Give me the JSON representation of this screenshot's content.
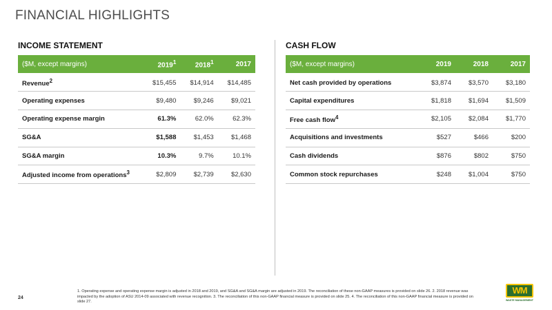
{
  "slide": {
    "title": "FINANCIAL HIGHLIGHTS",
    "page_number": "24",
    "footnote": "1. Operating expense and operating expense margin is adjusted in 2018 and 2019, and SG&A and SG&A margin are adjusted in 2019. The reconciliation of these non-GAAP measures is provided on slide 26. 2. 2018 revenue was impacted by the adoption of ASU 2014-09 associated with revenue recognition. 3. The reconciliation of this non-GAAP financial measure is provided on slide 25. 4. The reconciliation of this non-GAAP financial measure is provided on slide 27.",
    "logo_text": "WM",
    "logo_sub": "WASTE MANAGEMENT"
  },
  "income": {
    "title": "INCOME STATEMENT",
    "header_label": "($M, except margins)",
    "years": [
      "2019",
      "2018",
      "2017"
    ],
    "year_sups": [
      "1",
      "1",
      ""
    ],
    "rows": [
      {
        "label": "Revenue",
        "sup": "2",
        "values": [
          "$15,455",
          "$14,914",
          "$14,485"
        ]
      },
      {
        "label": "Operating expenses",
        "sup": "",
        "values": [
          "$9,480",
          "$9,246",
          "$9,021"
        ]
      },
      {
        "label": "Operating expense margin",
        "sup": "",
        "values": [
          "61.3%",
          "62.0%",
          "62.3%"
        ]
      },
      {
        "label": "SG&A",
        "sup": "",
        "values": [
          "$1,588",
          "$1,453",
          "$1,468"
        ]
      },
      {
        "label": "SG&A margin",
        "sup": "",
        "values": [
          "10.3%",
          "9.7%",
          "10.1%"
        ]
      },
      {
        "label": "Adjusted income from operations",
        "sup": "3",
        "values": [
          "$2,809",
          "$2,739",
          "$2,630"
        ]
      }
    ]
  },
  "cashflow": {
    "title": "CASH FLOW",
    "header_label": "($M, except margins)",
    "years": [
      "2019",
      "2018",
      "2017"
    ],
    "rows": [
      {
        "label": "Net cash provided by operations",
        "sup": "",
        "values": [
          "$3,874",
          "$3,570",
          "$3,180"
        ]
      },
      {
        "label": "Capital expenditures",
        "sup": "",
        "values": [
          "$1,818",
          "$1,694",
          "$1,509"
        ]
      },
      {
        "label": "Free cash flow",
        "sup": "4",
        "values": [
          "$2,105",
          "$2,084",
          "$1,770"
        ]
      },
      {
        "label": "Acquisitions and investments",
        "sup": "",
        "values": [
          "$527",
          "$466",
          "$200"
        ]
      },
      {
        "label": "Cash dividends",
        "sup": "",
        "values": [
          "$876",
          "$802",
          "$750"
        ]
      },
      {
        "label": "Common stock repurchases",
        "sup": "",
        "values": [
          "$248",
          "$1,004",
          "$750"
        ]
      }
    ]
  }
}
